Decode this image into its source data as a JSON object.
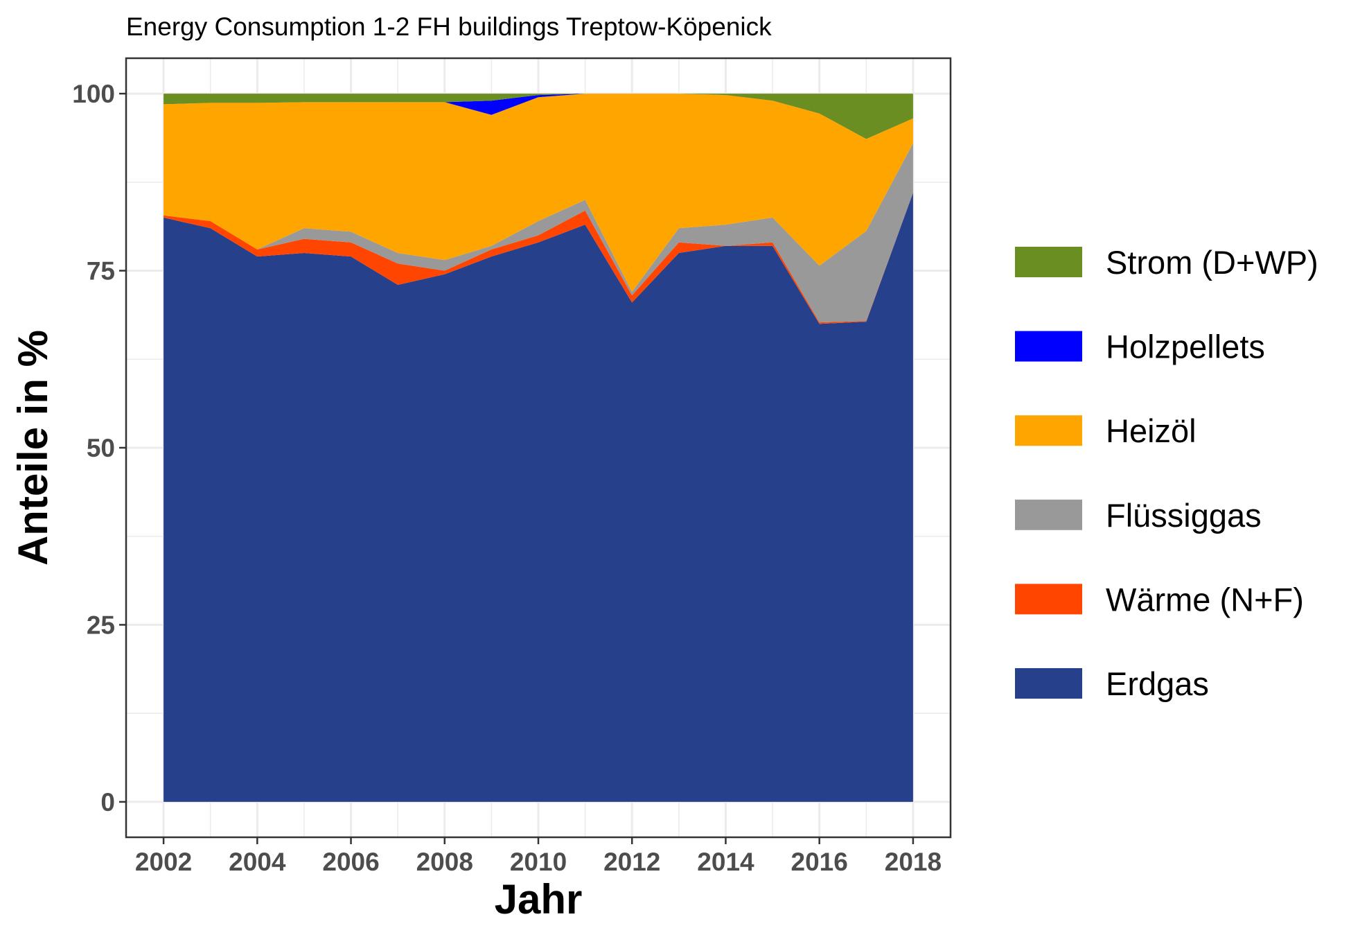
{
  "chart_data": {
    "type": "area",
    "title": "Energy Consumption 1-2 FH buildings Treptow-Köpenick",
    "xlabel": "Jahr",
    "ylabel": "Anteile in %",
    "xlim": [
      2001.2,
      2018.8
    ],
    "ylim": [
      -5,
      105
    ],
    "x": [
      2002,
      2003,
      2004,
      2005,
      2006,
      2007,
      2008,
      2009,
      2010,
      2011,
      2012,
      2013,
      2014,
      2015,
      2016,
      2017,
      2018
    ],
    "x_ticks": [
      2002,
      2004,
      2006,
      2008,
      2010,
      2012,
      2014,
      2016,
      2018
    ],
    "x_tick_labels": [
      "2002",
      "2004",
      "2006",
      "2008",
      "2010",
      "2012",
      "2014",
      "2016",
      "2018"
    ],
    "y_ticks": [
      0,
      25,
      50,
      75,
      100
    ],
    "y_tick_labels": [
      "0",
      "25",
      "50",
      "75",
      "100"
    ],
    "grid": true,
    "legend_position": "right",
    "series": [
      {
        "name": "Erdgas",
        "color": "#27408B",
        "values": [
          82.5,
          81.0,
          77.0,
          77.5,
          77.0,
          73.0,
          74.5,
          77.0,
          79.0,
          81.5,
          70.5,
          77.5,
          78.5,
          78.5,
          67.5,
          67.8,
          86.0
        ]
      },
      {
        "name": "Wärme (N+F)",
        "color": "#FF4500",
        "values": [
          0.3,
          1.0,
          1.0,
          2.0,
          2.0,
          3.0,
          0.5,
          1.0,
          1.0,
          2.0,
          1.0,
          1.5,
          0.0,
          0.5,
          0.2,
          0.1,
          0.0
        ]
      },
      {
        "name": "Flüssiggas",
        "color": "#999999",
        "values": [
          0.0,
          0.0,
          0.0,
          1.5,
          1.5,
          1.5,
          1.5,
          0.5,
          2.0,
          1.5,
          0.5,
          2.0,
          3.0,
          3.5,
          8.0,
          12.7,
          7.0
        ]
      },
      {
        "name": "Heizöl",
        "color": "#FFA500",
        "values": [
          15.7,
          16.7,
          20.7,
          17.8,
          18.3,
          21.3,
          22.3,
          18.5,
          17.5,
          15.0,
          28.0,
          19.0,
          18.3,
          16.5,
          21.5,
          13.0,
          3.5
        ]
      },
      {
        "name": "Holzpellets",
        "color": "#0000FF",
        "values": [
          0.0,
          0.0,
          0.0,
          0.0,
          0.0,
          0.0,
          0.0,
          2.0,
          0.3,
          0.0,
          0.0,
          0.0,
          0.0,
          0.0,
          0.0,
          0.0,
          0.0
        ]
      },
      {
        "name": "Strom (D+WP)",
        "color": "#6B8E23",
        "values": [
          1.5,
          1.3,
          1.3,
          1.2,
          1.2,
          1.2,
          1.2,
          1.0,
          0.2,
          0.0,
          0.0,
          0.0,
          0.2,
          1.0,
          2.8,
          6.4,
          3.5
        ]
      }
    ],
    "legend_order": [
      "Strom (D+WP)",
      "Holzpellets",
      "Heizöl",
      "Flüssiggas",
      "Wärme (N+F)",
      "Erdgas"
    ]
  }
}
